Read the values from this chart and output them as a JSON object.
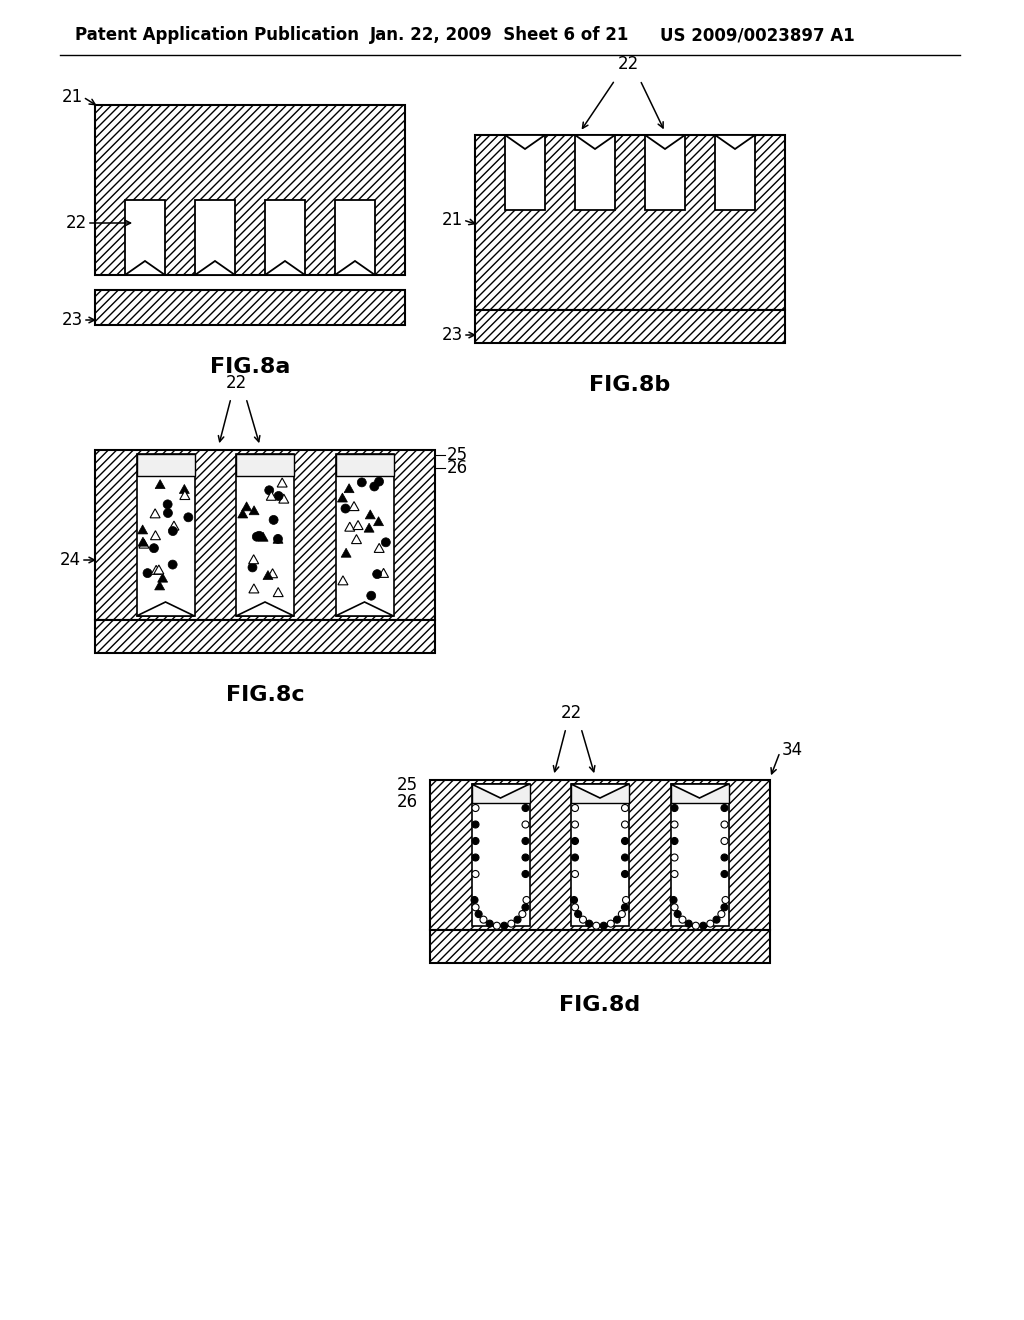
{
  "header_left": "Patent Application Publication",
  "header_mid": "Jan. 22, 2009  Sheet 6 of 21",
  "header_right": "US 2009/0023897 A1",
  "background_color": "#ffffff"
}
